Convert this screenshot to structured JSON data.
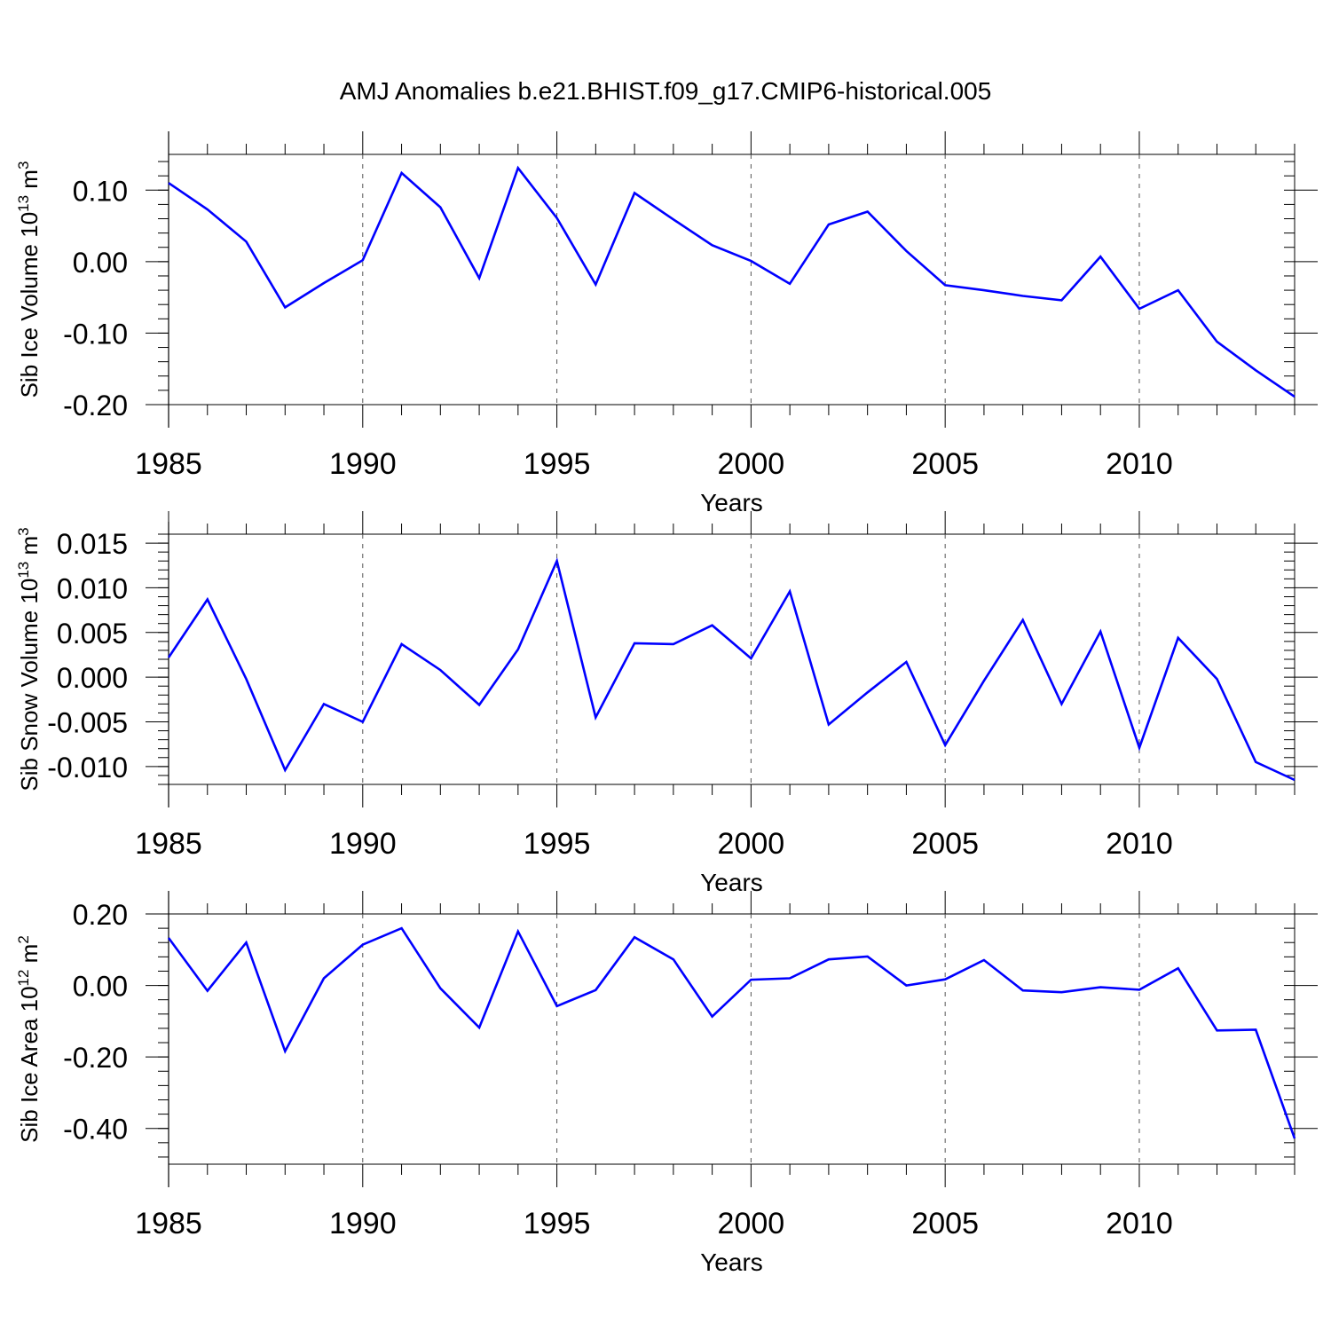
{
  "title": "AMJ Anomalies b.e21.BHIST.f09_g17.CMIP6-historical.005",
  "line_color": "#0000ff",
  "chart_data": [
    {
      "type": "line",
      "ylabel_main": "Sib Ice Volume 10",
      "ylabel_exp": "13",
      "ylabel_unit": " m",
      "ylabel_unit_exp": "3",
      "xlabel": "Years",
      "xlim": [
        1985,
        2014
      ],
      "ylim": [
        -0.2,
        0.15
      ],
      "x_ticks": [
        "1985",
        "1990",
        "1995",
        "2000",
        "2005",
        "2010"
      ],
      "y_ticks": [
        "0.10",
        "0.00",
        "-0.10",
        "-0.20"
      ],
      "series": [
        {
          "name": "Sib Ice Volume",
          "x": [
            1985,
            1986,
            1987,
            1988,
            1989,
            1990,
            1991,
            1992,
            1993,
            1994,
            1995,
            1996,
            1997,
            1998,
            1999,
            2000,
            2001,
            2002,
            2003,
            2004,
            2005,
            2006,
            2007,
            2008,
            2009,
            2010,
            2011,
            2012,
            2013,
            2014
          ],
          "values": [
            0.11,
            0.073,
            0.028,
            -0.064,
            -0.03,
            0.002,
            0.124,
            0.076,
            -0.023,
            0.131,
            0.061,
            -0.032,
            0.096,
            0.059,
            0.023,
            0.001,
            -0.031,
            0.052,
            0.07,
            0.015,
            -0.033,
            -0.04,
            -0.048,
            -0.054,
            0.007,
            -0.066,
            -0.04,
            -0.112,
            -0.152,
            -0.189
          ]
        }
      ]
    },
    {
      "type": "line",
      "ylabel_main": "Sib Snow Volume 10",
      "ylabel_exp": "13",
      "ylabel_unit": " m",
      "ylabel_unit_exp": "3",
      "xlabel": "Years",
      "xlim": [
        1985,
        2014
      ],
      "ylim": [
        -0.012,
        0.016
      ],
      "x_ticks": [
        "1985",
        "1990",
        "1995",
        "2000",
        "2005",
        "2010"
      ],
      "y_ticks": [
        "0.015",
        "0.010",
        "0.005",
        "0.000",
        "-0.005",
        "-0.010"
      ],
      "series": [
        {
          "name": "Sib Snow Volume",
          "x": [
            1985,
            1986,
            1987,
            1988,
            1989,
            1990,
            1991,
            1992,
            1993,
            1994,
            1995,
            1996,
            1997,
            1998,
            1999,
            2000,
            2001,
            2002,
            2003,
            2004,
            2005,
            2006,
            2007,
            2008,
            2009,
            2010,
            2011,
            2012,
            2013,
            2014
          ],
          "values": [
            0.0022,
            0.0087,
            -0.0002,
            -0.0104,
            -0.003,
            -0.005,
            0.0037,
            0.0008,
            -0.0031,
            0.0031,
            0.013,
            -0.0045,
            0.0038,
            0.0037,
            0.0058,
            0.0021,
            0.0096,
            -0.0053,
            -0.0017,
            0.0017,
            -0.0076,
            -0.0004,
            0.0064,
            -0.003,
            0.0051,
            -0.0079,
            0.0044,
            -0.0002,
            -0.0095,
            -0.0115
          ]
        }
      ]
    },
    {
      "type": "line",
      "ylabel_main": "Sib Ice Area 10",
      "ylabel_exp": "12",
      "ylabel_unit": " m",
      "ylabel_unit_exp": "2",
      "xlabel": "Years",
      "xlim": [
        1985,
        2014
      ],
      "ylim": [
        -0.5,
        0.2
      ],
      "x_ticks": [
        "1985",
        "1990",
        "1995",
        "2000",
        "2005",
        "2010"
      ],
      "y_ticks": [
        "0.20",
        "0.00",
        "-0.20",
        "-0.40"
      ],
      "series": [
        {
          "name": "Sib Ice Area",
          "x": [
            1985,
            1986,
            1987,
            1988,
            1989,
            1990,
            1991,
            1992,
            1993,
            1994,
            1995,
            1996,
            1997,
            1998,
            1999,
            2000,
            2001,
            2002,
            2003,
            2004,
            2005,
            2006,
            2007,
            2008,
            2009,
            2010,
            2011,
            2012,
            2013,
            2014
          ],
          "values": [
            0.133,
            -0.015,
            0.12,
            -0.184,
            0.02,
            0.114,
            0.16,
            -0.008,
            -0.118,
            0.151,
            -0.058,
            -0.013,
            0.135,
            0.073,
            -0.087,
            0.016,
            0.02,
            0.073,
            0.081,
            0.0,
            0.017,
            0.071,
            -0.014,
            -0.019,
            -0.005,
            -0.012,
            0.048,
            -0.126,
            -0.124,
            -0.428
          ]
        }
      ]
    }
  ]
}
